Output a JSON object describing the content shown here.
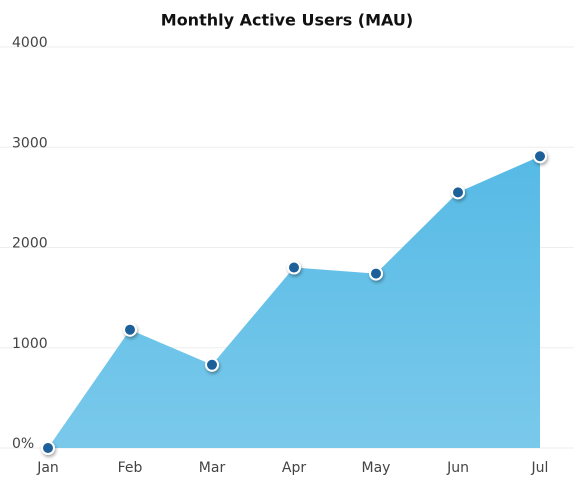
{
  "chart_data": {
    "type": "area",
    "title": "Monthly Active Users (MAU)",
    "categories": [
      "Jan",
      "Feb",
      "Mar",
      "Apr",
      "May",
      "Jun",
      "Jul"
    ],
    "series": [
      {
        "name": "MAU",
        "color": "#5bbde6",
        "values": [
          0,
          1180,
          830,
          1800,
          1740,
          2550,
          2910
        ]
      }
    ],
    "marker_color": "#1f5f99",
    "ylim": [
      0,
      4000
    ],
    "yticks": [
      {
        "value": 0,
        "label": "0%"
      },
      1000,
      2000,
      3000,
      4000
    ],
    "grid": true
  }
}
